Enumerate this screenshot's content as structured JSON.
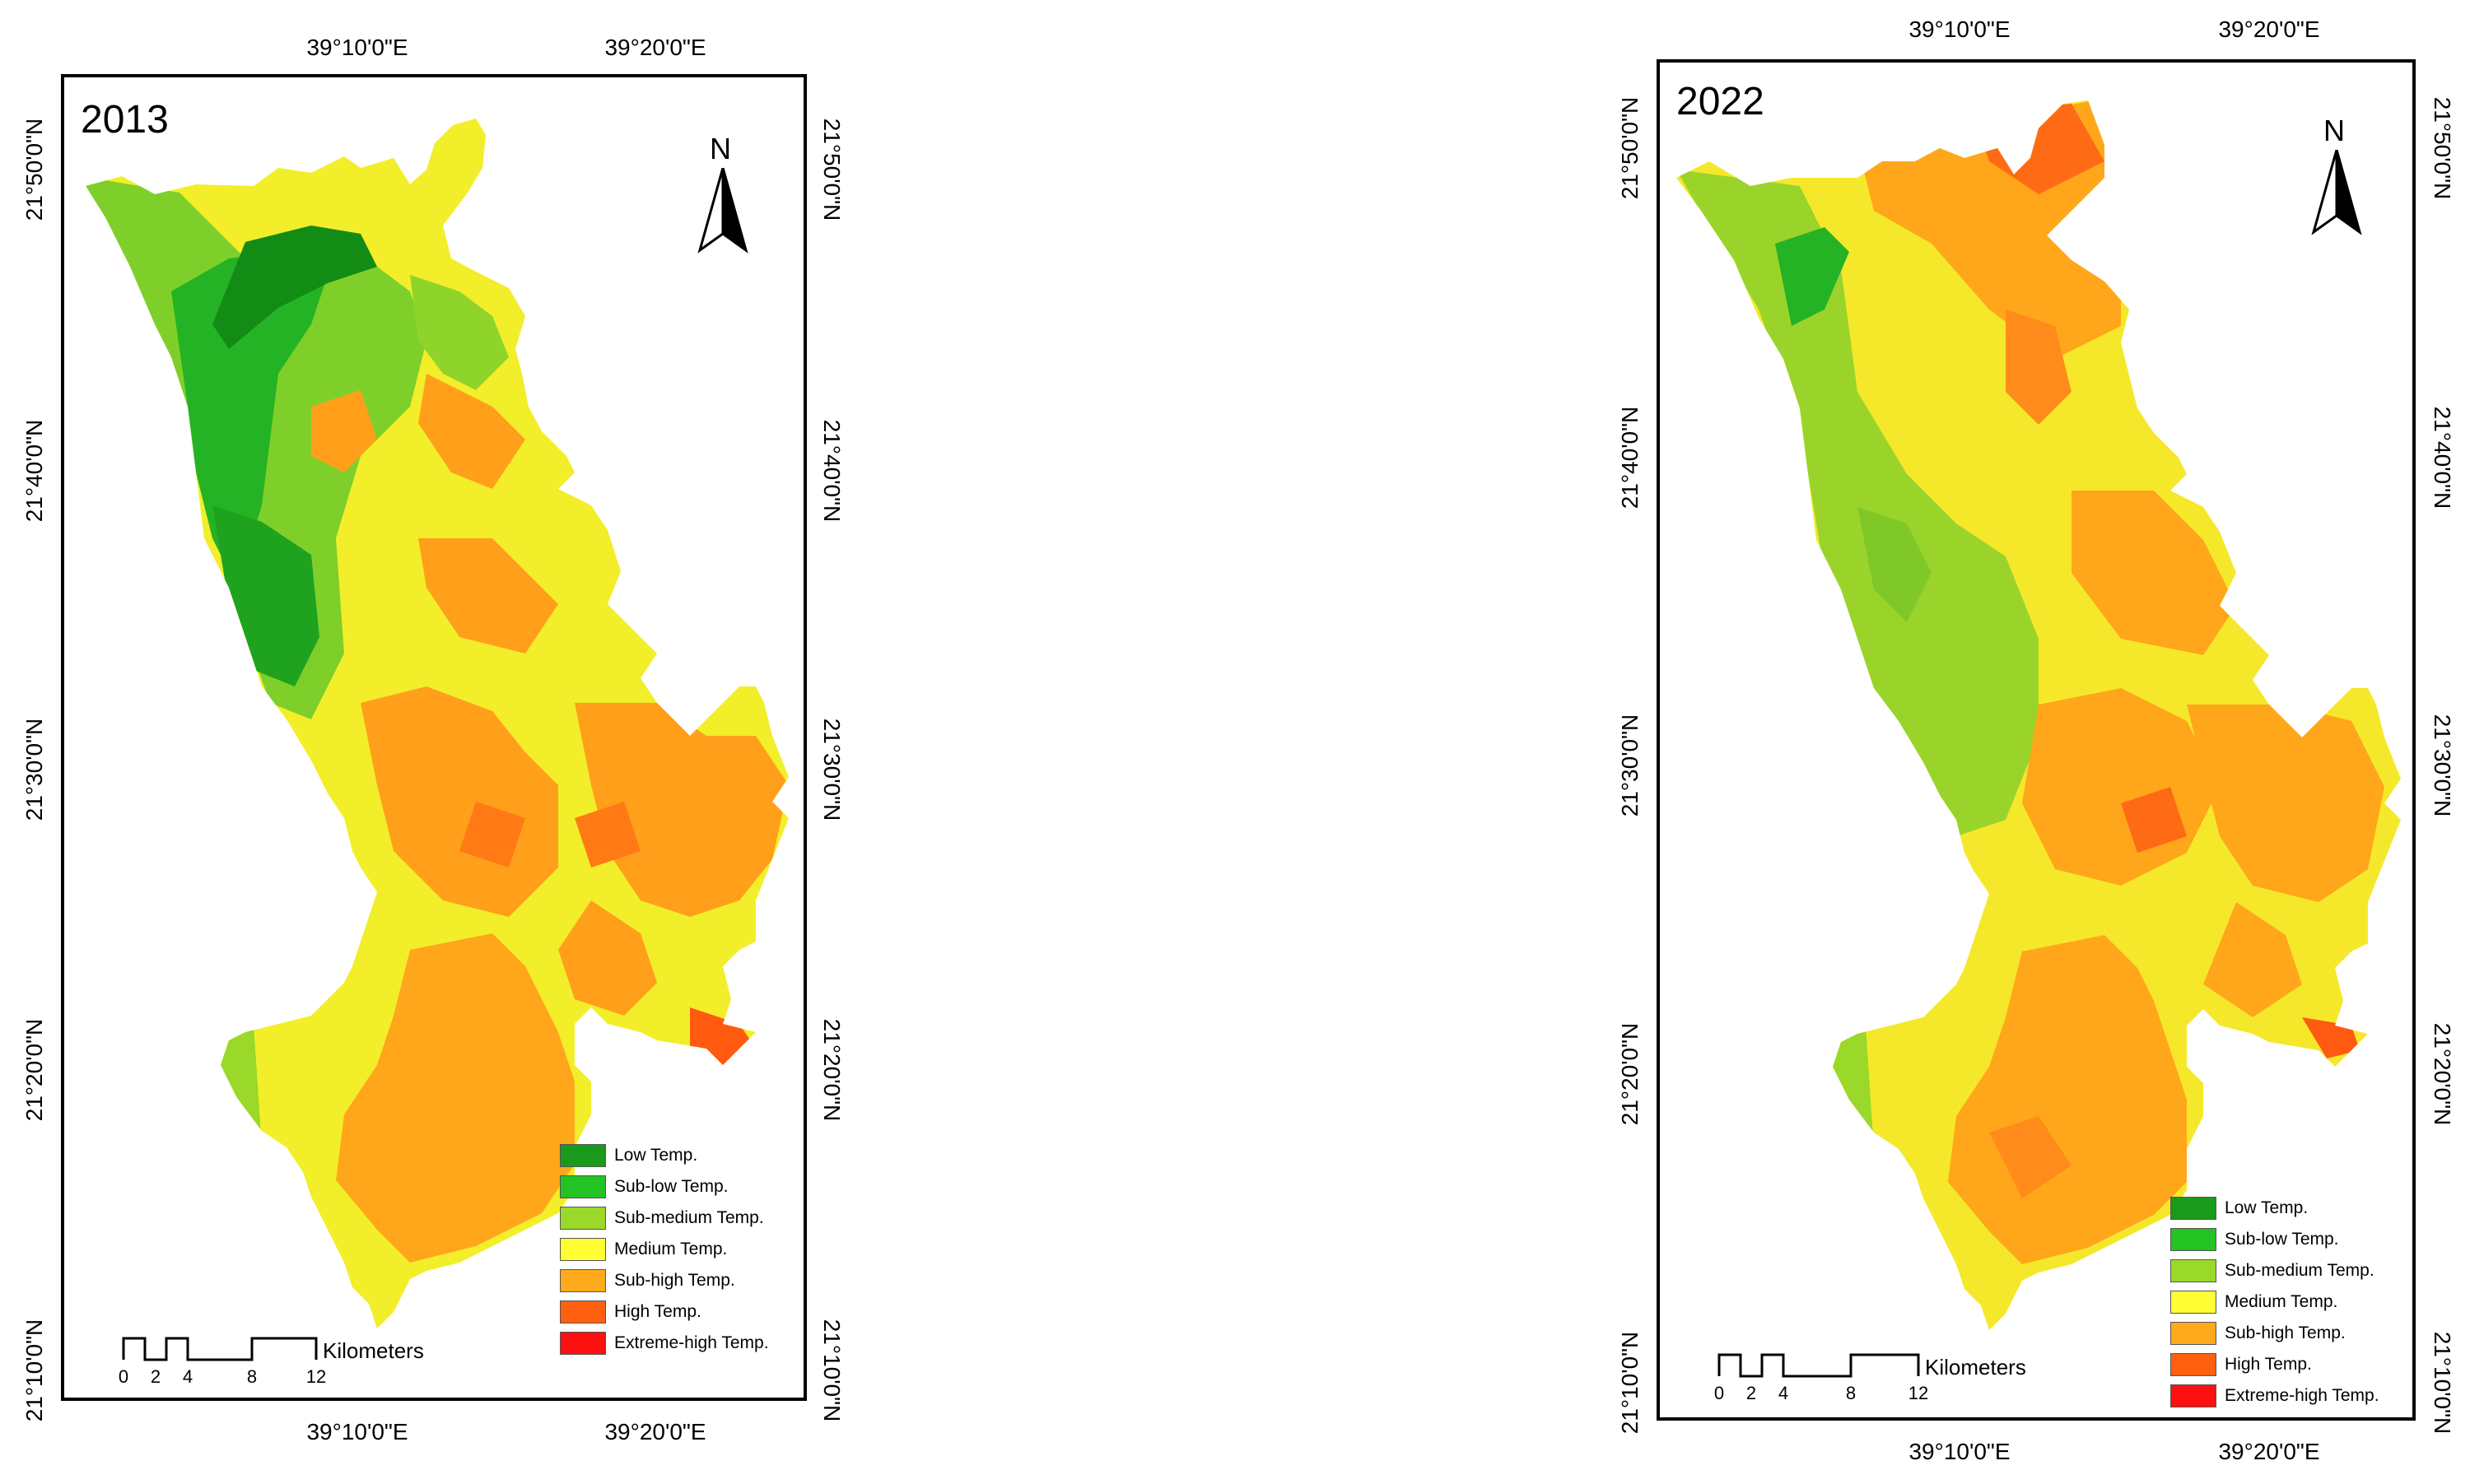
{
  "panels": [
    {
      "id": "2013",
      "year": "2013",
      "top_lon_labels": [
        "39°10'0\"E",
        "39°20'0\"E"
      ],
      "bottom_lon_labels": [
        "39°10'0\"E",
        "39°20'0\"E"
      ],
      "lat_labels": [
        "21°50'0\"N",
        "21°40'0\"N",
        "21°30'0\"N",
        "21°20'0\"N",
        "21°10'0\"N"
      ],
      "north_label": "N",
      "scale": {
        "ticks": [
          "0",
          "2",
          "4",
          "8",
          "12"
        ],
        "unit": "Kilometers"
      },
      "legend": [
        {
          "label": "Low Temp.",
          "color": "#1a9a1a"
        },
        {
          "label": "Sub-low Temp.",
          "color": "#22c322"
        },
        {
          "label": "Sub-medium Temp.",
          "color": "#9ad82a"
        },
        {
          "label": "Medium Temp.",
          "color": "#ffff33"
        },
        {
          "label": "Sub-high Temp.",
          "color": "#ffaa1a"
        },
        {
          "label": "High Temp.",
          "color": "#ff6010"
        },
        {
          "label": "Extreme-high Temp.",
          "color": "#ff1010"
        }
      ]
    },
    {
      "id": "2022",
      "year": "2022",
      "top_lon_labels": [
        "39°10'0\"E",
        "39°20'0\"E"
      ],
      "bottom_lon_labels": [
        "39°10'0\"E",
        "39°20'0\"E"
      ],
      "lat_labels": [
        "21°50'0\"N",
        "21°40'0\"N",
        "21°30'0\"N",
        "21°20'0\"N",
        "21°10'0\"N"
      ],
      "north_label": "N",
      "scale": {
        "ticks": [
          "0",
          "2",
          "4",
          "8",
          "12"
        ],
        "unit": "Kilometers"
      },
      "legend": [
        {
          "label": "Low Temp.",
          "color": "#1a9a1a"
        },
        {
          "label": "Sub-low Temp.",
          "color": "#22c322"
        },
        {
          "label": "Sub-medium Temp.",
          "color": "#9ad82a"
        },
        {
          "label": "Medium Temp.",
          "color": "#ffff33"
        },
        {
          "label": "Sub-high Temp.",
          "color": "#ffaa1a"
        },
        {
          "label": "High Temp.",
          "color": "#ff6010"
        },
        {
          "label": "Extreme-high Temp.",
          "color": "#ff1010"
        }
      ]
    }
  ]
}
